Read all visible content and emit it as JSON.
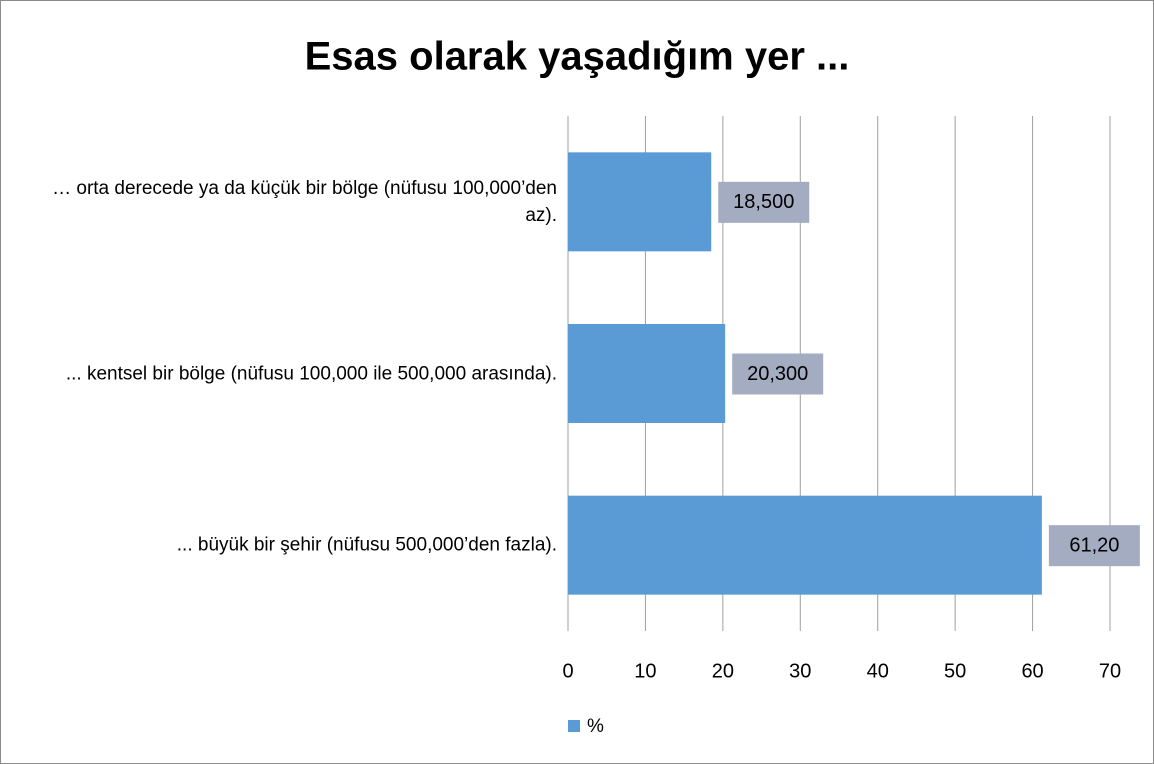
{
  "chart_data": {
    "type": "bar",
    "orientation": "horizontal",
    "title": "Esas olarak yaşadığım yer ...",
    "categories": [
      "… orta derecede ya da küçük bir bölge (nüfusu 100,000’den az).",
      "...  kentsel bir bölge (nüfusu 100,000 ile 500,000 arasında).",
      "...  büyük bir şehir (nüfusu 500,000’den fazla)."
    ],
    "series": [
      {
        "name": "%",
        "color": "#5b9bd5",
        "values": [
          18.5,
          20.3,
          61.2
        ],
        "value_labels": [
          "18,500",
          "20,300",
          "61,20"
        ]
      }
    ],
    "xlim": [
      0,
      70
    ],
    "xticks": [
      0,
      10,
      20,
      30,
      40,
      50,
      60,
      70
    ],
    "grid": true,
    "legend": "bottom",
    "label_box_color": "#a3acc0"
  }
}
